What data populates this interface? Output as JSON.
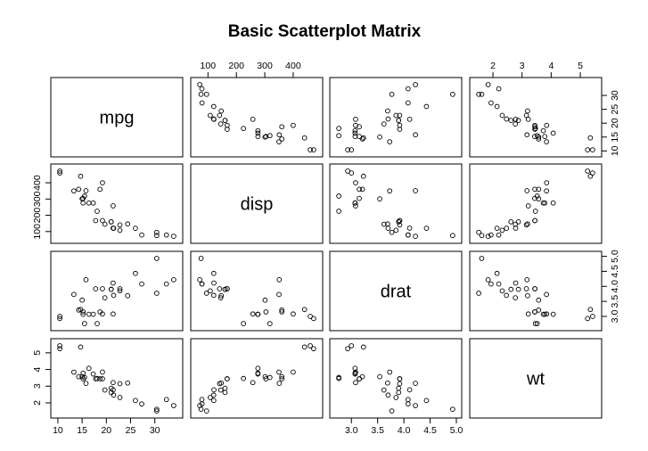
{
  "chart_data": {
    "type": "scatter",
    "title": "Basic Scatterplot Matrix",
    "variables": [
      {
        "name": "mpg",
        "range": [
          10.4,
          33.9
        ],
        "ticks": [
          10,
          15,
          20,
          25,
          30
        ],
        "tick_labels": [
          "10",
          "15",
          "20",
          "25",
          "30"
        ]
      },
      {
        "name": "disp",
        "range": [
          71.1,
          472
        ],
        "ticks": [
          100,
          200,
          300,
          400
        ],
        "tick_labels": [
          "100",
          "200",
          "300",
          "400"
        ]
      },
      {
        "name": "drat",
        "range": [
          2.76,
          4.93
        ],
        "ticks": [
          3.0,
          3.5,
          4.0,
          4.5,
          5.0
        ],
        "tick_labels": [
          "3.0",
          "3.5",
          "4.0",
          "4.5",
          "5.0"
        ]
      },
      {
        "name": "wt",
        "range": [
          1.513,
          5.424
        ],
        "ticks": [
          2,
          3,
          4,
          5
        ],
        "tick_labels": [
          "2",
          "3",
          "4",
          "5"
        ]
      }
    ],
    "observations": {
      "mpg": [
        21.0,
        21.0,
        22.8,
        21.4,
        18.7,
        18.1,
        14.3,
        24.4,
        22.8,
        19.2,
        17.8,
        16.4,
        17.3,
        15.2,
        10.4,
        10.4,
        14.7,
        32.4,
        30.4,
        33.9,
        21.5,
        15.5,
        15.2,
        13.3,
        19.2,
        27.3,
        26.0,
        30.4,
        15.8,
        19.7,
        15.0,
        21.4
      ],
      "disp": [
        160,
        160,
        108,
        258,
        360,
        225,
        360,
        146.7,
        140.8,
        167.6,
        167.6,
        275.8,
        275.8,
        275.8,
        472,
        460,
        440,
        78.7,
        75.7,
        71.1,
        120.1,
        318,
        304,
        350,
        400,
        79,
        120.3,
        95.1,
        351,
        145,
        301,
        121
      ],
      "drat": [
        3.9,
        3.9,
        3.85,
        3.08,
        3.15,
        2.76,
        3.21,
        3.69,
        3.92,
        3.92,
        3.92,
        3.07,
        3.07,
        3.07,
        2.93,
        3.0,
        3.23,
        4.08,
        4.93,
        4.22,
        3.7,
        2.76,
        3.15,
        3.73,
        3.08,
        4.08,
        4.43,
        3.77,
        4.22,
        3.62,
        3.54,
        4.11
      ],
      "wt": [
        2.62,
        2.875,
        2.32,
        3.215,
        3.44,
        3.46,
        3.57,
        3.19,
        3.15,
        3.44,
        3.44,
        4.07,
        3.73,
        3.78,
        5.25,
        5.424,
        5.345,
        2.2,
        1.615,
        1.835,
        2.465,
        3.52,
        3.435,
        3.84,
        3.845,
        1.935,
        2.14,
        1.513,
        3.17,
        2.77,
        3.57,
        2.78
      ]
    },
    "top_axis_variables": [
      "disp",
      "wt"
    ],
    "bottom_axis_variables": [
      "mpg",
      "drat"
    ],
    "left_axis_variables": [
      "disp",
      "wt"
    ],
    "right_axis_variables": [
      "mpg",
      "drat"
    ],
    "grid": false,
    "legend": "none",
    "marker": "open-circle"
  }
}
